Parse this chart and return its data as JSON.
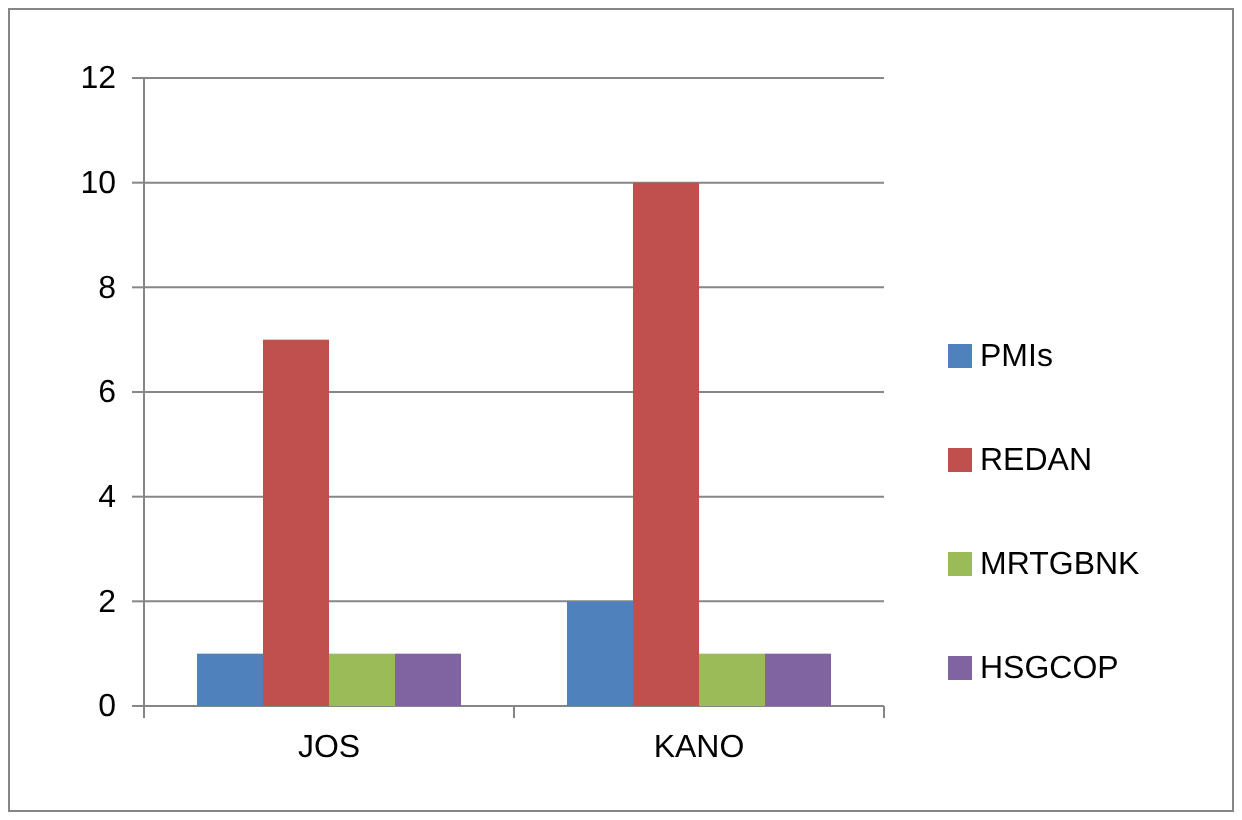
{
  "chart_data": {
    "type": "bar",
    "categories": [
      "JOS",
      "KANO"
    ],
    "series": [
      {
        "name": "PMIs",
        "color": "#4f81bd",
        "values": [
          1,
          2
        ]
      },
      {
        "name": "REDAN",
        "color": "#c0504d",
        "values": [
          7,
          10
        ]
      },
      {
        "name": "MRTGBNK",
        "color": "#9bbb59",
        "values": [
          1,
          1
        ]
      },
      {
        "name": "HSGCOP",
        "color": "#8064a2",
        "values": [
          1,
          1
        ]
      }
    ],
    "ylim": [
      0,
      12
    ],
    "yticks": [
      0,
      2,
      4,
      6,
      8,
      10,
      12
    ],
    "grid": "y",
    "legend": "right"
  }
}
